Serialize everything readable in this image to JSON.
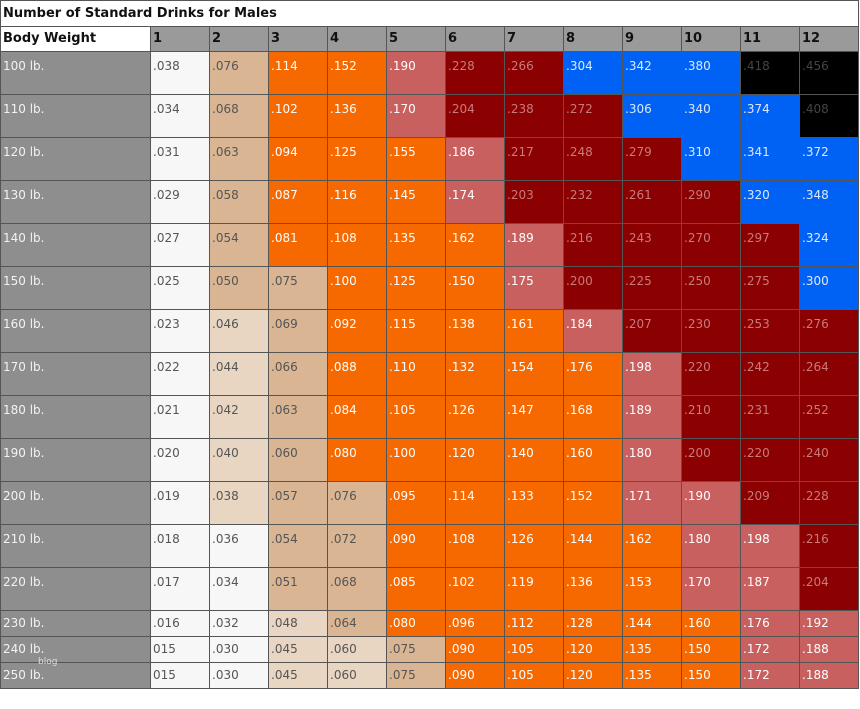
{
  "title": "Number of Standard Drinks for Males",
  "corner_label": "Body Weight",
  "drink_columns": [
    "1",
    "2",
    "3",
    "4",
    "5",
    "6",
    "7",
    "8",
    "9",
    "10",
    "11",
    "12"
  ],
  "watermark": "blog",
  "colors": {
    "white": "#f7f7f7",
    "cream": "#e9d6c2",
    "tan": "#d9b593",
    "orange": "#f56900",
    "salmon": "#c96060",
    "maroon": "#8b0000",
    "blue": "#0062f5",
    "black": "#000000",
    "label_gray": "#8e8e8e",
    "header_gray": "#9a9a9a"
  },
  "rows": [
    {
      "weight": "100 lb.",
      "values": [
        ".038",
        ".076",
        ".114",
        ".152",
        ".190",
        ".228",
        ".266",
        ".304",
        ".342",
        ".380",
        ".418",
        ".456"
      ],
      "colors": [
        "white",
        "tan",
        "orange",
        "orange",
        "salmon",
        "maroon",
        "maroon",
        "blue",
        "blue",
        "blue",
        "black",
        "black"
      ]
    },
    {
      "weight": "110 lb.",
      "values": [
        ".034",
        ".068",
        ".102",
        ".136",
        ".170",
        ".204",
        ".238",
        ".272",
        ".306",
        ".340",
        ".374",
        ".408"
      ],
      "colors": [
        "white",
        "tan",
        "orange",
        "orange",
        "salmon",
        "maroon",
        "maroon",
        "maroon",
        "blue",
        "blue",
        "blue",
        "black"
      ]
    },
    {
      "weight": "120 lb.",
      "values": [
        ".031",
        ".063",
        ".094",
        ".125",
        ".155",
        ".186",
        ".217",
        ".248",
        ".279",
        ".310",
        ".341",
        ".372"
      ],
      "colors": [
        "white",
        "tan",
        "orange",
        "orange",
        "orange",
        "salmon",
        "maroon",
        "maroon",
        "maroon",
        "blue",
        "blue",
        "blue"
      ]
    },
    {
      "weight": "130 lb.",
      "values": [
        ".029",
        ".058",
        ".087",
        ".116",
        ".145",
        ".174",
        ".203",
        ".232",
        ".261",
        ".290",
        ".320",
        ".348"
      ],
      "colors": [
        "white",
        "tan",
        "orange",
        "orange",
        "orange",
        "salmon",
        "maroon",
        "maroon",
        "maroon",
        "maroon",
        "blue",
        "blue"
      ]
    },
    {
      "weight": "140 lb.",
      "values": [
        ".027",
        ".054",
        ".081",
        ".108",
        ".135",
        ".162",
        ".189",
        ".216",
        ".243",
        ".270",
        ".297",
        ".324"
      ],
      "colors": [
        "white",
        "tan",
        "orange",
        "orange",
        "orange",
        "orange",
        "salmon",
        "maroon",
        "maroon",
        "maroon",
        "maroon",
        "blue"
      ]
    },
    {
      "weight": "150 lb.",
      "values": [
        ".025",
        ".050",
        ".075",
        ".100",
        ".125",
        ".150",
        ".175",
        ".200",
        ".225",
        ".250",
        ".275",
        ".300"
      ],
      "colors": [
        "white",
        "tan",
        "tan",
        "orange",
        "orange",
        "orange",
        "salmon",
        "maroon",
        "maroon",
        "maroon",
        "maroon",
        "blue"
      ]
    },
    {
      "weight": "160 lb.",
      "values": [
        ".023",
        ".046",
        ".069",
        ".092",
        ".115",
        ".138",
        ".161",
        ".184",
        ".207",
        ".230",
        ".253",
        ".276"
      ],
      "colors": [
        "white",
        "cream",
        "tan",
        "orange",
        "orange",
        "orange",
        "orange",
        "salmon",
        "maroon",
        "maroon",
        "maroon",
        "maroon"
      ]
    },
    {
      "weight": "170 lb.",
      "values": [
        ".022",
        ".044",
        ".066",
        ".088",
        ".110",
        ".132",
        ".154",
        ".176",
        ".198",
        ".220",
        ".242",
        ".264"
      ],
      "colors": [
        "white",
        "cream",
        "tan",
        "orange",
        "orange",
        "orange",
        "orange",
        "orange",
        "salmon",
        "maroon",
        "maroon",
        "maroon"
      ]
    },
    {
      "weight": "180 lb.",
      "values": [
        ".021",
        ".042",
        ".063",
        ".084",
        ".105",
        ".126",
        ".147",
        ".168",
        ".189",
        ".210",
        ".231",
        ".252"
      ],
      "colors": [
        "white",
        "cream",
        "tan",
        "orange",
        "orange",
        "orange",
        "orange",
        "orange",
        "salmon",
        "maroon",
        "maroon",
        "maroon"
      ]
    },
    {
      "weight": "190 lb.",
      "values": [
        ".020",
        ".040",
        ".060",
        ".080",
        ".100",
        ".120",
        ".140",
        ".160",
        ".180",
        ".200",
        ".220",
        ".240"
      ],
      "colors": [
        "white",
        "cream",
        "tan",
        "orange",
        "orange",
        "orange",
        "orange",
        "orange",
        "salmon",
        "maroon",
        "maroon",
        "maroon"
      ]
    },
    {
      "weight": "200 lb.",
      "values": [
        ".019",
        ".038",
        ".057",
        ".076",
        ".095",
        ".114",
        ".133",
        ".152",
        ".171",
        ".190",
        ".209",
        ".228"
      ],
      "colors": [
        "white",
        "cream",
        "tan",
        "tan",
        "orange",
        "orange",
        "orange",
        "orange",
        "salmon",
        "salmon",
        "maroon",
        "maroon"
      ]
    },
    {
      "weight": "210 lb.",
      "values": [
        ".018",
        ".036",
        ".054",
        ".072",
        ".090",
        ".108",
        ".126",
        ".144",
        ".162",
        ".180",
        ".198",
        ".216"
      ],
      "colors": [
        "white",
        "white",
        "tan",
        "tan",
        "orange",
        "orange",
        "orange",
        "orange",
        "orange",
        "salmon",
        "salmon",
        "maroon"
      ]
    },
    {
      "weight": "220 lb.",
      "values": [
        ".017",
        ".034",
        ".051",
        ".068",
        ".085",
        ".102",
        ".119",
        ".136",
        ".153",
        ".170",
        ".187",
        ".204"
      ],
      "colors": [
        "white",
        "white",
        "tan",
        "tan",
        "orange",
        "orange",
        "orange",
        "orange",
        "orange",
        "salmon",
        "salmon",
        "maroon"
      ]
    },
    {
      "weight": "230 lb.",
      "values": [
        ".016",
        ".032",
        ".048",
        ".064",
        ".080",
        ".096",
        ".112",
        ".128",
        ".144",
        ".160",
        ".176",
        ".192"
      ],
      "colors": [
        "white",
        "white",
        "cream",
        "tan",
        "orange",
        "orange",
        "orange",
        "orange",
        "orange",
        "orange",
        "salmon",
        "salmon"
      ]
    },
    {
      "weight": "240 lb.",
      "values": [
        "015",
        ".030",
        ".045",
        ".060",
        ".075",
        ".090",
        ".105",
        ".120",
        ".135",
        ".150",
        ".172",
        ".188"
      ],
      "colors": [
        "white",
        "white",
        "cream",
        "cream",
        "tan",
        "orange",
        "orange",
        "orange",
        "orange",
        "orange",
        "salmon",
        "salmon"
      ]
    },
    {
      "weight": "250 lb.",
      "values": [
        "015",
        ".030",
        ".045",
        ".060",
        ".075",
        ".090",
        ".105",
        ".120",
        ".135",
        ".150",
        ".172",
        ".188"
      ],
      "colors": [
        "white",
        "white",
        "cream",
        "cream",
        "tan",
        "orange",
        "orange",
        "orange",
        "orange",
        "orange",
        "salmon",
        "salmon"
      ]
    }
  ]
}
